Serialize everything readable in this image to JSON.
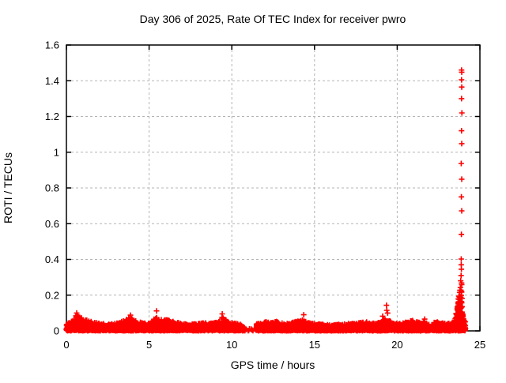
{
  "chart_data": {
    "type": "scatter",
    "title": "Day 306 of 2025, Rate Of TEC Index for receiver pwro",
    "xlabel": "GPS time / hours",
    "ylabel": "ROTI / TECUs",
    "xlim": [
      0,
      25
    ],
    "ylim": [
      0,
      1.6
    ],
    "xticks": [
      0,
      5,
      10,
      15,
      20,
      25
    ],
    "yticks": [
      0,
      0.2,
      0.4,
      0.6,
      0.8,
      1,
      1.2,
      1.4,
      1.6
    ],
    "xticklabels": [
      "0",
      "5",
      "10",
      "15",
      "20",
      "25"
    ],
    "yticklabels": [
      "0",
      "0.2",
      "0.4",
      "0.6",
      "0.8",
      "1",
      "1.2",
      "1.4",
      "1.6"
    ],
    "grid": true,
    "legend": "none",
    "marker": "+",
    "marker_color": "#ff0000",
    "series": [
      {
        "name": "ROTI",
        "description": "Dense band of + markers hugging y=0 from hour 0 to ~24.1 with upper envelope below, a data gap near hours 10.8-11.45, and a large spike column near hour 23.9 reaching 1.46 TECUs.",
        "x_range": [
          0,
          24.13
        ],
        "band_floor": 0,
        "band_envelope": [
          [
            0.0,
            0.045
          ],
          [
            0.25,
            0.05
          ],
          [
            0.5,
            0.075
          ],
          [
            0.62,
            0.09
          ],
          [
            0.8,
            0.085
          ],
          [
            1.0,
            0.065
          ],
          [
            1.3,
            0.06
          ],
          [
            1.6,
            0.05
          ],
          [
            2.0,
            0.042
          ],
          [
            2.5,
            0.038
          ],
          [
            3.0,
            0.042
          ],
          [
            3.3,
            0.05
          ],
          [
            3.6,
            0.065
          ],
          [
            3.9,
            0.075
          ],
          [
            4.1,
            0.06
          ],
          [
            4.4,
            0.05
          ],
          [
            4.8,
            0.042
          ],
          [
            5.1,
            0.05
          ],
          [
            5.35,
            0.08
          ],
          [
            5.5,
            0.07
          ],
          [
            5.8,
            0.06
          ],
          [
            6.1,
            0.062
          ],
          [
            6.4,
            0.055
          ],
          [
            6.8,
            0.045
          ],
          [
            7.2,
            0.04
          ],
          [
            7.6,
            0.038
          ],
          [
            8.0,
            0.042
          ],
          [
            8.4,
            0.045
          ],
          [
            8.8,
            0.042
          ],
          [
            9.1,
            0.05
          ],
          [
            9.35,
            0.08
          ],
          [
            9.55,
            0.07
          ],
          [
            9.8,
            0.05
          ],
          [
            10.1,
            0.045
          ],
          [
            10.4,
            0.04
          ],
          [
            10.7,
            0.03
          ],
          [
            10.8,
            0.012
          ],
          [
            11.4,
            0.012
          ],
          [
            11.5,
            0.04
          ],
          [
            11.8,
            0.048
          ],
          [
            12.1,
            0.05
          ],
          [
            12.4,
            0.045
          ],
          [
            12.7,
            0.055
          ],
          [
            13.0,
            0.045
          ],
          [
            13.4,
            0.042
          ],
          [
            13.7,
            0.048
          ],
          [
            14.0,
            0.055
          ],
          [
            14.3,
            0.065
          ],
          [
            14.5,
            0.05
          ],
          [
            14.8,
            0.045
          ],
          [
            15.1,
            0.042
          ],
          [
            15.5,
            0.038
          ],
          [
            16.0,
            0.032
          ],
          [
            16.5,
            0.038
          ],
          [
            17.0,
            0.042
          ],
          [
            17.5,
            0.04
          ],
          [
            18.1,
            0.055
          ],
          [
            18.5,
            0.042
          ],
          [
            19.0,
            0.05
          ],
          [
            19.3,
            0.07
          ],
          [
            19.5,
            0.06
          ],
          [
            19.8,
            0.045
          ],
          [
            20.2,
            0.042
          ],
          [
            20.6,
            0.05
          ],
          [
            20.9,
            0.06
          ],
          [
            21.2,
            0.05
          ],
          [
            21.6,
            0.048
          ],
          [
            22.0,
            0.045
          ],
          [
            22.3,
            0.052
          ],
          [
            22.7,
            0.045
          ],
          [
            23.0,
            0.04
          ],
          [
            23.3,
            0.045
          ],
          [
            23.5,
            0.07
          ],
          [
            23.65,
            0.14
          ],
          [
            23.75,
            0.22
          ],
          [
            23.85,
            0.3
          ],
          [
            23.9,
            0.26
          ],
          [
            23.95,
            0.12
          ],
          [
            24.0,
            0.07
          ],
          [
            24.13,
            0.05
          ]
        ],
        "gaps": [
          [
            10.8,
            11.45
          ]
        ],
        "outliers": [
          [
            0.62,
            0.1
          ],
          [
            3.87,
            0.088
          ],
          [
            5.45,
            0.112
          ],
          [
            9.42,
            0.095
          ],
          [
            14.35,
            0.09
          ],
          [
            19.12,
            0.082
          ],
          [
            19.35,
            0.143
          ],
          [
            19.37,
            0.115
          ],
          [
            19.42,
            0.1
          ],
          [
            21.66,
            0.066
          ],
          [
            23.86,
            0.31
          ],
          [
            23.88,
            0.345
          ],
          [
            23.87,
            0.37
          ],
          [
            23.87,
            0.402
          ],
          [
            23.88,
            0.54
          ],
          [
            23.9,
            0.672
          ],
          [
            23.88,
            0.75
          ],
          [
            23.9,
            0.849
          ],
          [
            23.87,
            0.937
          ],
          [
            23.9,
            1.048
          ],
          [
            23.89,
            1.12
          ],
          [
            23.91,
            1.22
          ],
          [
            23.89,
            1.3
          ],
          [
            23.9,
            1.365
          ],
          [
            23.89,
            1.405
          ],
          [
            23.9,
            1.448
          ],
          [
            23.89,
            1.46
          ]
        ]
      }
    ]
  },
  "colors": {
    "marker": "#ff0000",
    "grid": "#b4b4b4",
    "border": "#000000",
    "background": "#ffffff",
    "text": "#000000"
  }
}
